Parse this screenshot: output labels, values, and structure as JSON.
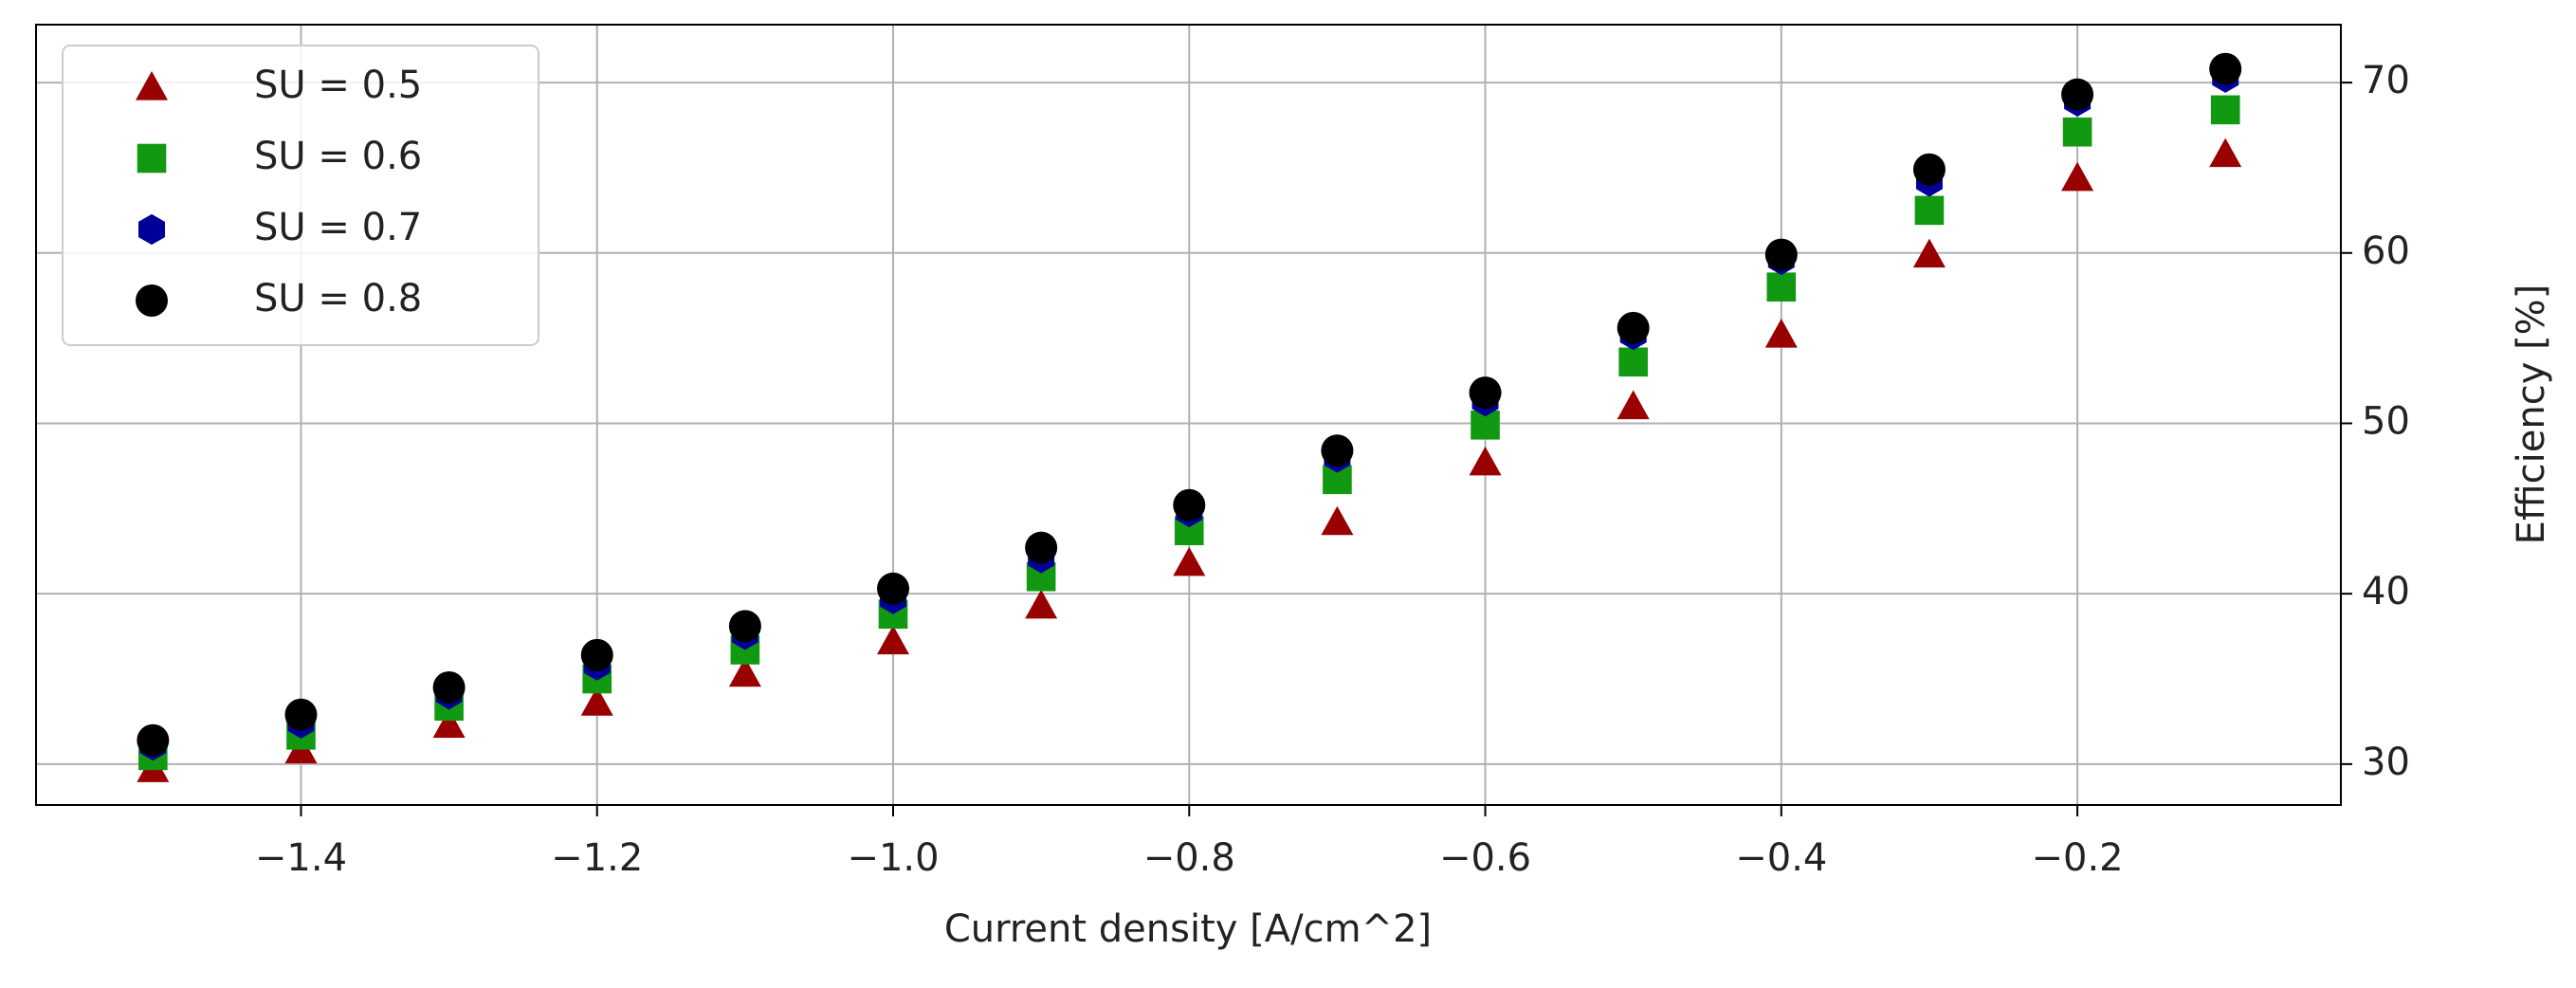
{
  "chart_data": {
    "type": "scatter",
    "x_label": "Current density [A/cm^2]",
    "y_label": "Efficiency [%]",
    "x": [
      -1.5,
      -1.4,
      -1.3,
      -1.2,
      -1.1,
      -1.0,
      -0.9,
      -0.8,
      -0.7,
      -0.6,
      -0.5,
      -0.4,
      -0.3,
      -0.2,
      -0.1
    ],
    "series": [
      {
        "name": "SU = 0.5",
        "color": "#990000",
        "marker": "triangle",
        "values": [
          29.7,
          30.8,
          32.3,
          33.6,
          35.3,
          37.2,
          39.3,
          41.8,
          44.2,
          47.7,
          51.0,
          55.2,
          59.9,
          64.4,
          65.8
        ]
      },
      {
        "name": "SU = 0.6",
        "color": "#119911",
        "marker": "square",
        "values": [
          30.5,
          31.7,
          33.4,
          35.0,
          36.7,
          38.8,
          41.0,
          43.7,
          46.7,
          49.9,
          53.6,
          58.0,
          62.5,
          67.1,
          68.4
        ]
      },
      {
        "name": "SU = 0.7",
        "color": "#000099",
        "marker": "hexagon",
        "values": [
          31.1,
          32.4,
          34.1,
          35.8,
          37.6,
          39.7,
          42.1,
          44.8,
          48.0,
          51.3,
          55.2,
          59.6,
          64.2,
          68.9,
          70.3
        ]
      },
      {
        "name": "SU = 0.8",
        "color": "#000000",
        "marker": "circle",
        "values": [
          31.4,
          32.9,
          34.5,
          36.4,
          38.1,
          40.3,
          42.7,
          45.2,
          48.4,
          51.8,
          55.6,
          59.9,
          64.9,
          69.3,
          70.8
        ]
      }
    ],
    "xlim": [
      -1.579,
      -0.022
    ],
    "ylim": [
      27.6,
      73.4
    ],
    "xticks": [
      {
        "value": -1.4,
        "label": "−1.4"
      },
      {
        "value": -1.2,
        "label": "−1.2"
      },
      {
        "value": -1.0,
        "label": "−1.0"
      },
      {
        "value": -0.8,
        "label": "−0.8"
      },
      {
        "value": -0.6,
        "label": "−0.6"
      },
      {
        "value": -0.4,
        "label": "−0.4"
      },
      {
        "value": -0.2,
        "label": "−0.2"
      }
    ],
    "yticks": [
      30,
      40,
      50,
      60,
      70
    ],
    "y_axis_side": "right",
    "grid": true,
    "legend": "upper left"
  }
}
